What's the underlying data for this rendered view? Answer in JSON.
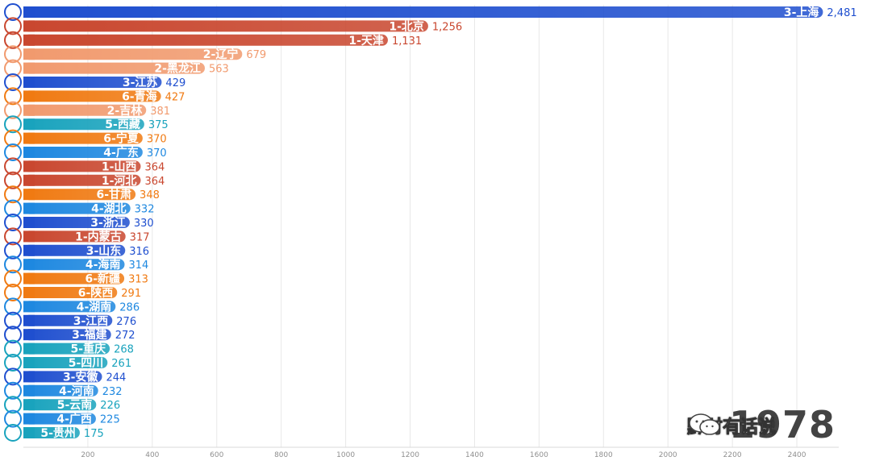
{
  "chart_data": {
    "type": "bar",
    "orientation": "horizontal",
    "year": "1978",
    "categories": [
      "3-上海",
      "1-北京",
      "1-天津",
      "2-辽宁",
      "2-黑龙江",
      "3-江苏",
      "6-青海",
      "2-吉林",
      "5-西藏",
      "6-宁夏",
      "4-广东",
      "1-山西",
      "1-河北",
      "6-甘肃",
      "4-湖北",
      "3-浙江",
      "1-内蒙古",
      "3-山东",
      "4-海南",
      "6-新疆",
      "6-陕西",
      "4-湖南",
      "3-江西",
      "3-福建",
      "5-重庆",
      "5-四川",
      "3-安徽",
      "4-河南",
      "5-云南",
      "4-广西",
      "5-贵州"
    ],
    "values": [
      2481,
      1256,
      1131,
      679,
      563,
      429,
      427,
      381,
      375,
      370,
      370,
      364,
      364,
      348,
      332,
      330,
      317,
      316,
      314,
      313,
      291,
      286,
      276,
      272,
      268,
      261,
      244,
      232,
      226,
      225,
      175
    ],
    "value_labels": [
      "2,481",
      "1,256",
      "1,131",
      "679",
      "563",
      "429",
      "427",
      "381",
      "375",
      "370",
      "370",
      "364",
      "364",
      "348",
      "332",
      "330",
      "317",
      "316",
      "314",
      "313",
      "291",
      "286",
      "276",
      "272",
      "268",
      "261",
      "244",
      "232",
      "226",
      "225",
      "175"
    ],
    "groups": [
      3,
      1,
      1,
      2,
      2,
      3,
      6,
      2,
      5,
      6,
      4,
      1,
      1,
      6,
      4,
      3,
      1,
      3,
      4,
      6,
      6,
      4,
      3,
      3,
      5,
      5,
      3,
      4,
      5,
      4,
      5
    ],
    "group_colors": {
      "1": "#c9472f",
      "2": "#f19a6e",
      "3": "#1f4fcf",
      "4": "#1e88e0",
      "5": "#19a3bd",
      "6": "#f07a12"
    },
    "value_text_colors": {
      "1": "#c9472f",
      "2": "#f19a6e",
      "3": "#1f4fcf",
      "4": "#1e88e0",
      "5": "#19a3bd",
      "6": "#f07a12"
    },
    "xticks": [
      200,
      400,
      600,
      800,
      1000,
      1200,
      1400,
      1600,
      1800,
      2000,
      2200,
      2400
    ],
    "xlim": [
      0,
      2530
    ],
    "grid": true,
    "title": "",
    "xlabel": "",
    "ylabel": ""
  },
  "watermark": {
    "text": "黔财有话说",
    "icon": "wechat-icon"
  }
}
